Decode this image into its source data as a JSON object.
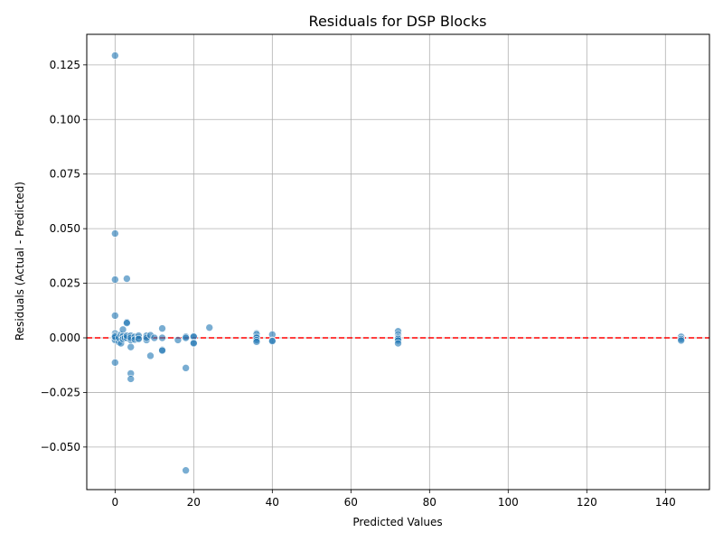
{
  "chart_data": {
    "type": "scatter",
    "title": "Residuals for DSP Blocks",
    "xlabel": "Predicted Values",
    "ylabel": "Residuals (Actual - Predicted)",
    "xlim": [
      -7.2,
      151.2
    ],
    "ylim": [
      -0.0695,
      0.139
    ],
    "xticks": [
      0,
      20,
      40,
      60,
      80,
      100,
      120,
      140
    ],
    "xtick_labels": [
      "0",
      "20",
      "40",
      "60",
      "80",
      "100",
      "120",
      "140"
    ],
    "yticks": [
      -0.05,
      -0.025,
      0,
      0.025,
      0.05,
      0.075,
      0.1,
      0.125
    ],
    "ytick_labels": [
      "−0.050",
      "−0.025",
      "0.000",
      "0.025",
      "0.050",
      "0.075",
      "0.100",
      "0.125"
    ],
    "grid": true,
    "reference_line": {
      "y": 0,
      "color": "#ff0000",
      "style": "dashed"
    },
    "point_color": "#1f77b4",
    "points": [
      [
        0,
        0.1293
      ],
      [
        0,
        0.0478
      ],
      [
        0,
        0.0267
      ],
      [
        0,
        0.0102
      ],
      [
        0,
        -0.0113
      ],
      [
        0,
        0.002
      ],
      [
        0,
        0.001
      ],
      [
        0,
        0.0
      ],
      [
        0,
        -0.001
      ],
      [
        0,
        0.0005
      ],
      [
        1,
        -0.002
      ],
      [
        1,
        0.0
      ],
      [
        1.5,
        -0.0025
      ],
      [
        1.5,
        0.0015
      ],
      [
        2,
        0.0038
      ],
      [
        2,
        0.0008
      ],
      [
        2,
        -0.0005
      ],
      [
        2.5,
        0.0
      ],
      [
        3,
        0.0271
      ],
      [
        3,
        0.0072
      ],
      [
        3,
        0.0068
      ],
      [
        3,
        0.0
      ],
      [
        3,
        0.001
      ],
      [
        4,
        0.001
      ],
      [
        4,
        -0.001
      ],
      [
        4,
        -0.0042
      ],
      [
        4,
        -0.0163
      ],
      [
        4,
        -0.0188
      ],
      [
        4,
        0.0
      ],
      [
        5,
        0.0005
      ],
      [
        5,
        -0.0008
      ],
      [
        6,
        0.0
      ],
      [
        6,
        0.001
      ],
      [
        6,
        -0.0005
      ],
      [
        8,
        0.001
      ],
      [
        8,
        -0.001
      ],
      [
        8,
        0.0
      ],
      [
        9,
        0.0012
      ],
      [
        9,
        -0.0082
      ],
      [
        10,
        0.0
      ],
      [
        12,
        0.0043
      ],
      [
        12,
        0.0
      ],
      [
        12,
        -0.0055
      ],
      [
        12,
        -0.0058
      ],
      [
        16,
        -0.001
      ],
      [
        18,
        0.0005
      ],
      [
        18,
        0.0
      ],
      [
        18,
        -0.0138
      ],
      [
        18,
        -0.0607
      ],
      [
        20,
        0.0008
      ],
      [
        20,
        0.0005
      ],
      [
        20,
        -0.0022
      ],
      [
        20,
        -0.0025
      ],
      [
        24,
        0.0047
      ],
      [
        36,
        0.002
      ],
      [
        36,
        0.0015
      ],
      [
        36,
        0.0005
      ],
      [
        36,
        0.0
      ],
      [
        36,
        -0.001
      ],
      [
        36,
        -0.0018
      ],
      [
        40,
        0.0015
      ],
      [
        40,
        -0.0012
      ],
      [
        40,
        -0.0015
      ],
      [
        72,
        0.003
      ],
      [
        72,
        0.0015
      ],
      [
        72,
        0.0005
      ],
      [
        72,
        0.0
      ],
      [
        72,
        -0.0005
      ],
      [
        72,
        -0.0012
      ],
      [
        72,
        -0.0025
      ],
      [
        144,
        0.0005
      ],
      [
        144,
        -0.0005
      ],
      [
        144,
        -0.0012
      ]
    ]
  }
}
